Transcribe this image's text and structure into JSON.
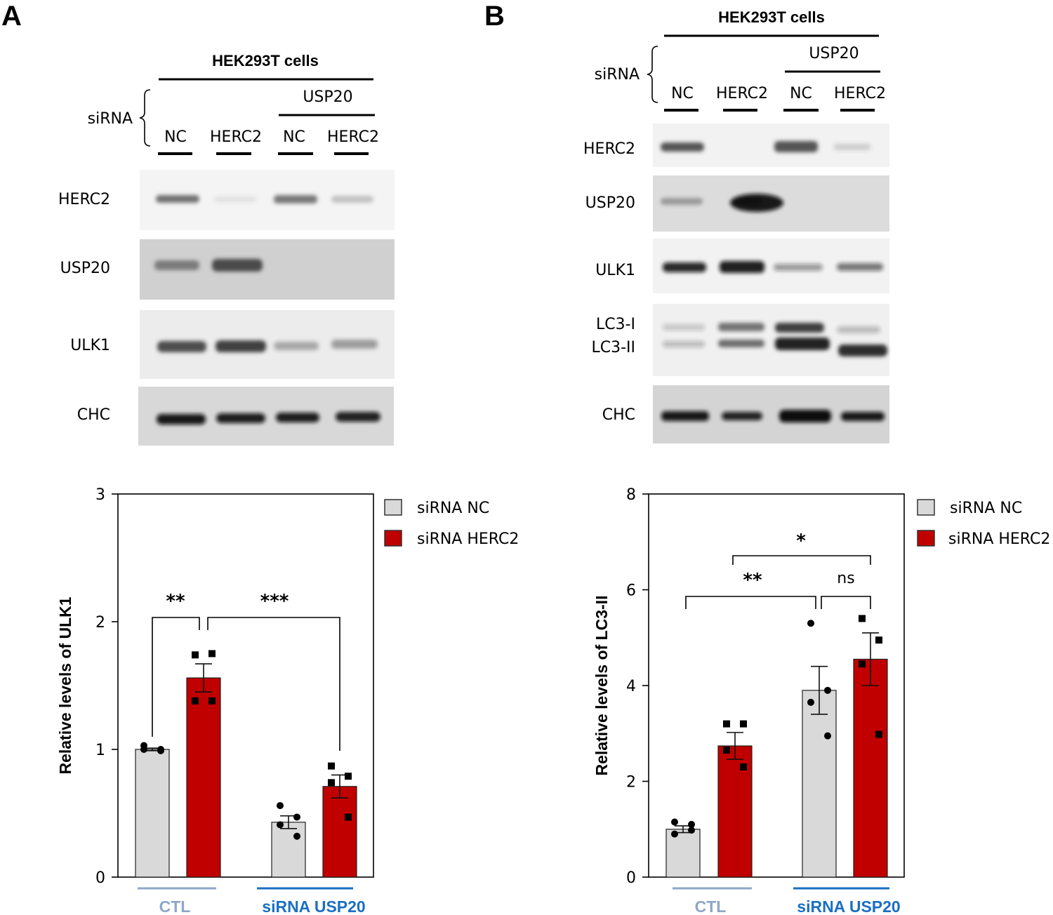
{
  "panels": {
    "a": {
      "letter": "A",
      "blot": {
        "title": "HEK293T cells",
        "sirna_label": "siRNA",
        "usp20_label": "USP20",
        "lanes": [
          "NC",
          "HERC2",
          "NC",
          "HERC2"
        ],
        "rows": [
          "HERC2",
          "USP20",
          "ULK1",
          "CHC"
        ]
      }
    },
    "b": {
      "letter": "B",
      "blot": {
        "title": "HEK293T cells",
        "sirna_label": "siRNA",
        "usp20_label": "USP20",
        "lanes": [
          "NC",
          "HERC2",
          "NC",
          "HERC2"
        ],
        "rows": [
          "HERC2",
          "USP20",
          "ULK1",
          "LC3-I",
          "LC3-II",
          "CHC"
        ]
      }
    }
  },
  "chart_data": [
    {
      "type": "bar",
      "ylabel": "Relative levels of ULK1",
      "ylim": [
        0,
        3
      ],
      "yticks": [
        "0",
        "1",
        "2",
        "3"
      ],
      "groups": [
        "CTL",
        "siRNA USP20"
      ],
      "group_colors": [
        "#8ea6c8",
        "#1a6fc4"
      ],
      "legend": [
        "siRNA NC",
        "siRNA HERC2"
      ],
      "series": [
        {
          "name": "siRNA NC",
          "color": "#d9d9d9",
          "values": [
            1.0,
            0.43
          ],
          "sem": [
            0.01,
            0.05
          ],
          "points": [
            [
              1.03,
              1.0,
              1.0,
              0.99
            ],
            [
              0.56,
              0.47,
              0.41,
              0.32
            ]
          ]
        },
        {
          "name": "siRNA HERC2",
          "color": "#c00000",
          "values": [
            1.56,
            0.71
          ],
          "sem": [
            0.11,
            0.09
          ],
          "points": [
            [
              1.74,
              1.75,
              1.38,
              1.38
            ],
            [
              0.87,
              0.79,
              0.74,
              0.47
            ]
          ]
        }
      ],
      "significance": [
        {
          "label": "**"
        },
        {
          "label": "***"
        }
      ]
    },
    {
      "type": "bar",
      "ylabel": "Relative levels of LC3-II",
      "ylim": [
        0,
        8
      ],
      "yticks": [
        "0",
        "2",
        "4",
        "6",
        "8"
      ],
      "groups": [
        "CTL",
        "siRNA USP20"
      ],
      "group_colors": [
        "#8ea6c8",
        "#1a6fc4"
      ],
      "legend": [
        "siRNA NC",
        "siRNA HERC2"
      ],
      "series": [
        {
          "name": "siRNA NC",
          "color": "#d9d9d9",
          "values": [
            1.0,
            3.9
          ],
          "sem": [
            0.07,
            0.5
          ],
          "points": [
            [
              1.15,
              1.1,
              0.9,
              0.98
            ],
            [
              5.3,
              3.9,
              3.65,
              2.95
            ]
          ]
        },
        {
          "name": "siRNA HERC2",
          "color": "#c00000",
          "values": [
            2.74,
            4.55
          ],
          "sem": [
            0.28,
            0.55
          ],
          "points": [
            [
              3.2,
              3.2,
              2.65,
              2.3
            ],
            [
              5.4,
              4.95,
              4.45,
              2.98
            ]
          ]
        }
      ],
      "significance": [
        {
          "label": "**"
        },
        {
          "label": "ns"
        },
        {
          "label": "*"
        }
      ]
    }
  ]
}
